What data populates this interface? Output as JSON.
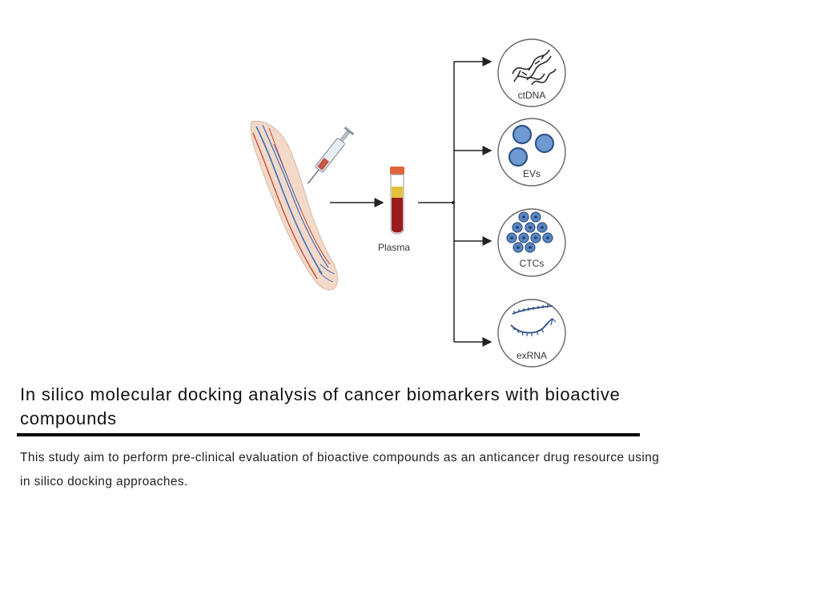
{
  "figure": {
    "plasma_label": "Plasma",
    "biomarkers": [
      "ctDNA",
      "EVs",
      "CTCs",
      "exRNA"
    ],
    "colors": {
      "arrow": "#222222",
      "circle_stroke": "#666666",
      "blue": "#3b6aa8",
      "blue_light": "#6f9ad1",
      "blood": "#9a1c1c",
      "cap": "#e0643a",
      "vein_blue": "#3a6fb8",
      "vein_red": "#c0392b",
      "skin": "#f3d9c8"
    }
  },
  "article": {
    "title": "In silico molecular docking analysis of cancer biomarkers with bioactive compounds",
    "description": "This study aim to perform pre-clinical evaluation of bioactive compounds as an anticancer drug resource using in silico docking approaches."
  }
}
